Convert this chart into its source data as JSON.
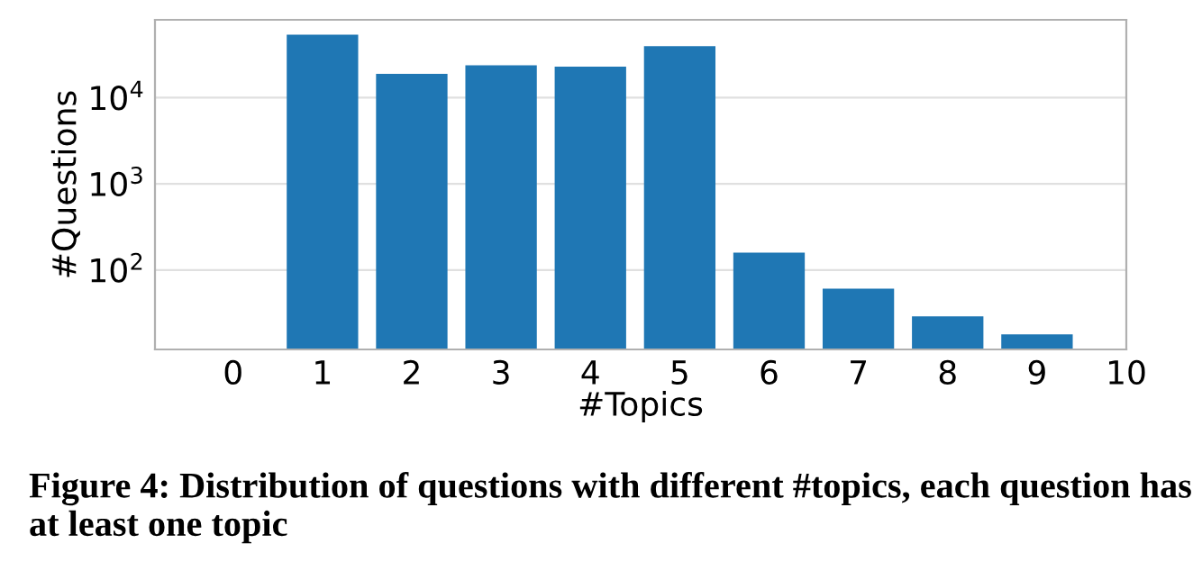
{
  "chart_data": {
    "type": "bar",
    "xlabel": "#Topics",
    "ylabel": "#Questions",
    "x": [
      1,
      2,
      3,
      4,
      5,
      6,
      7,
      8,
      9
    ],
    "values": [
      53700,
      18900,
      23700,
      22900,
      39500,
      159,
      61,
      29,
      18
    ],
    "color": "#1f77b4",
    "log": true,
    "grid": "y",
    "xlim": [
      -0.875,
      10
    ],
    "xticks": [
      0,
      1,
      2,
      3,
      4,
      5,
      6,
      7,
      8,
      9,
      10
    ],
    "ylim": [
      12,
      80000
    ],
    "yticks": [
      {
        "value": 100,
        "label": "10$^{2}$"
      },
      {
        "value": 1000,
        "label": "10$^{3}$"
      },
      {
        "value": 10000,
        "label": "10$^{4}$"
      }
    ],
    "annotations": [
      "Figure 4: Distribution of questions with different #topics, each question has at least one topic"
    ]
  }
}
